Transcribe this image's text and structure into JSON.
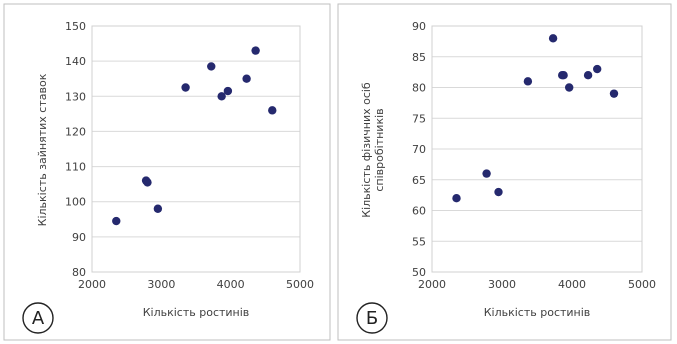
{
  "chart_data": [
    {
      "type": "scatter",
      "panel_label": "А",
      "xlabel": "Кількість ростинів",
      "ylabel": "Кількість зайнятих ставок",
      "xlim": [
        2000,
        5000
      ],
      "ylim": [
        80,
        150
      ],
      "xticks": [
        "2000",
        "3000",
        "4000",
        "5000"
      ],
      "yticks": [
        "80",
        "90",
        "100",
        "110",
        "120",
        "130",
        "140",
        "150"
      ],
      "grid": "horizontal",
      "legend": "none",
      "marker_color": "#25296e",
      "x": [
        2350,
        2780,
        2800,
        2950,
        3350,
        3720,
        3870,
        3960,
        4230,
        4360,
        4600
      ],
      "y": [
        94.5,
        106,
        105.5,
        98,
        132.5,
        138.5,
        130,
        131.5,
        135,
        143,
        126
      ]
    },
    {
      "type": "scatter",
      "panel_label": "Б",
      "xlabel": "Кількість ростинів",
      "ylabel_lines": [
        "Кількість фізичних осіб",
        "співробітників"
      ],
      "xlim": [
        2000,
        5000
      ],
      "ylim": [
        50,
        90
      ],
      "xticks": [
        "2000",
        "3000",
        "4000",
        "5000"
      ],
      "yticks": [
        "50",
        "55",
        "60",
        "65",
        "70",
        "75",
        "80",
        "85",
        "90"
      ],
      "grid": "horizontal",
      "legend": "none",
      "marker_color": "#25296e",
      "x": [
        2350,
        2780,
        2950,
        3370,
        3730,
        3860,
        3880,
        3960,
        4230,
        4360,
        4600
      ],
      "y": [
        62,
        66,
        63,
        81,
        88,
        82,
        82,
        80,
        82,
        83,
        79
      ]
    }
  ]
}
